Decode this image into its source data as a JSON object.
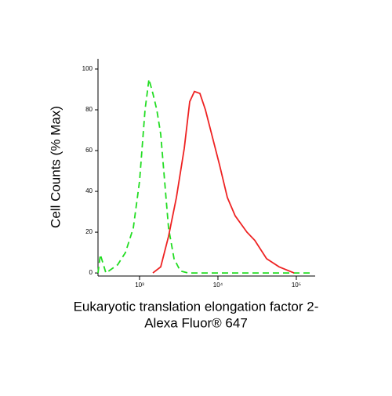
{
  "chart_data": {
    "type": "line",
    "ylabel": "Cell Counts (% Max)",
    "xlabel": [
      "Eukaryotic translation elongation factor 2-",
      "Alexa Fluor® 647"
    ],
    "xscale": "log",
    "xlim": [
      295,
      174000
    ],
    "ylim": [
      -1.5,
      105
    ],
    "xticks": [
      {
        "value": 1000,
        "label": "10³"
      },
      {
        "value": 10000,
        "label": "10⁴"
      },
      {
        "value": 100000,
        "label": "10⁵"
      }
    ],
    "yticks": [
      0,
      20,
      40,
      60,
      80,
      100
    ],
    "series": [
      {
        "color": "#22dd22",
        "dashed": true,
        "x": [
          295,
          316,
          372,
          525,
          661,
          832,
          1000,
          1175,
          1318,
          1479,
          1660,
          1862,
          2089,
          2344,
          2754,
          3311,
          4169,
          16600,
          166000
        ],
        "values": [
          0,
          9,
          0,
          4,
          10,
          22,
          45,
          80,
          95,
          88,
          80,
          68,
          45,
          22,
          7,
          1,
          0,
          0,
          0
        ]
      },
      {
        "color": "#ee2222",
        "dashed": false,
        "x": [
          1479,
          1862,
          2344,
          2951,
          3715,
          4365,
          5012,
          5888,
          6918,
          8318,
          10470,
          13180,
          16600,
          23440,
          29510,
          41690,
          60260,
          93330
        ],
        "values": [
          0,
          3,
          18,
          37,
          61,
          84,
          89,
          88,
          80,
          68,
          53,
          37,
          28,
          20,
          16,
          7,
          3,
          0
        ]
      }
    ]
  }
}
